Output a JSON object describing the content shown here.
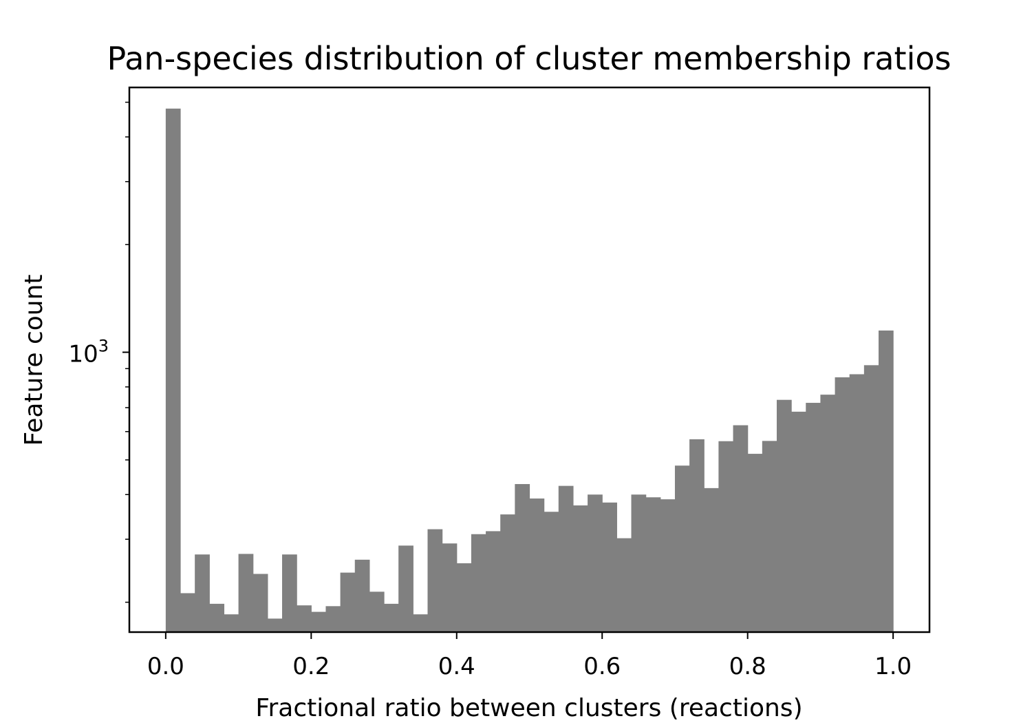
{
  "chart_data": {
    "type": "bar",
    "title": "Pan-species distribution of cluster membership ratios",
    "xlabel": "Fractional ratio between clusters (reactions)",
    "ylabel": "Feature count",
    "y_scale": "log",
    "xlim": [
      -0.05,
      1.05
    ],
    "ylim": [
      165,
      5500
    ],
    "x_ticks": [
      {
        "value": 0.0,
        "label": "0.0"
      },
      {
        "value": 0.2,
        "label": "0.2"
      },
      {
        "value": 0.4,
        "label": "0.4"
      },
      {
        "value": 0.6,
        "label": "0.6"
      },
      {
        "value": 0.8,
        "label": "0.8"
      },
      {
        "value": 1.0,
        "label": "1.0"
      }
    ],
    "y_major_ticks": [
      {
        "value": 1000,
        "base": "10",
        "exponent": "3"
      }
    ],
    "y_minor_ticks": [
      200,
      300,
      400,
      500,
      600,
      700,
      800,
      900,
      2000,
      3000,
      4000,
      5000
    ],
    "bin_width": 0.02,
    "bin_starts": [
      0.0,
      0.02,
      0.04,
      0.06,
      0.08,
      0.1,
      0.12,
      0.14,
      0.16,
      0.18,
      0.2,
      0.22,
      0.24,
      0.26,
      0.28,
      0.3,
      0.32,
      0.34,
      0.36,
      0.38,
      0.4,
      0.42,
      0.44,
      0.46,
      0.48,
      0.5,
      0.52,
      0.54,
      0.56,
      0.58,
      0.6,
      0.62,
      0.64,
      0.66,
      0.68,
      0.7,
      0.72,
      0.74,
      0.76,
      0.78,
      0.8,
      0.82,
      0.84,
      0.86,
      0.88,
      0.9,
      0.92,
      0.94,
      0.96,
      0.98
    ],
    "values": [
      4800,
      212,
      272,
      198,
      185,
      273,
      240,
      180,
      272,
      196,
      188,
      195,
      242,
      263,
      214,
      198,
      288,
      185,
      320,
      292,
      257,
      310,
      316,
      352,
      428,
      390,
      358,
      423,
      373,
      400,
      380,
      302,
      400,
      393,
      388,
      482,
      571,
      417,
      564,
      625,
      520,
      565,
      736,
      682,
      722,
      761,
      851,
      868,
      920,
      1150
    ],
    "bar_color": "#808080"
  }
}
